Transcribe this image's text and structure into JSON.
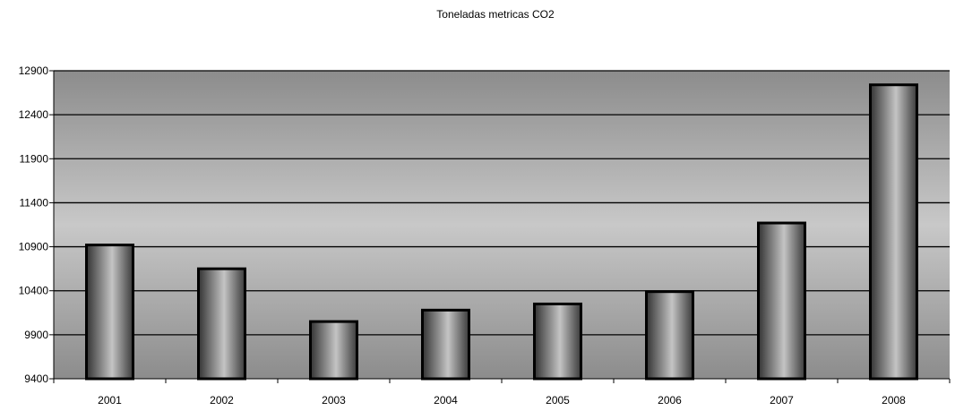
{
  "chart_data": {
    "type": "bar",
    "title": "Toneladas metricas CO2",
    "xlabel": "",
    "ylabel": "",
    "categories": [
      "2001",
      "2002",
      "2003",
      "2004",
      "2005",
      "2006",
      "2007",
      "2008"
    ],
    "values": [
      10920,
      10650,
      10050,
      10180,
      10250,
      10390,
      11170,
      12740
    ],
    "ylim": [
      9400,
      12900
    ],
    "yticks": [
      9400,
      9900,
      10400,
      10900,
      11400,
      11900,
      12400,
      12900
    ],
    "grid": true,
    "legend": "none"
  },
  "colors": {
    "plot_background_edge": "#8c8c8c",
    "plot_background_center": "#c8c8c8",
    "bar_dark": "#333333",
    "bar_light": "#c4c4c4",
    "bar_outline": "#000000",
    "gridline": "#000000"
  }
}
